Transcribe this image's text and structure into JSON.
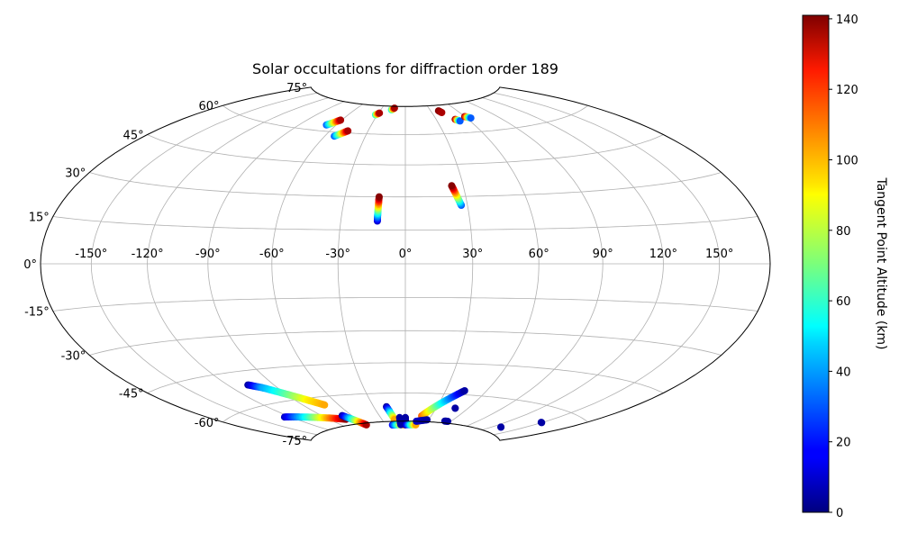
{
  "chart_data": {
    "type": "scatter",
    "projection": "hammer",
    "title": "Solar occultations for diffraction order 189",
    "grid": true,
    "lon_ticks": [
      "-150°",
      "-120°",
      "-90°",
      "-60°",
      "-30°",
      "0°",
      "30°",
      "60°",
      "90°",
      "120°",
      "150°"
    ],
    "lat_ticks": [
      "75°",
      "60°",
      "45°",
      "30°",
      "15°",
      "0°",
      "-15°",
      "-30°",
      "-45°",
      "-60°",
      "-75°"
    ],
    "colorbar": {
      "label": "Tangent Point Altitude (km)",
      "colormap": "jet",
      "range": [
        0,
        141
      ],
      "ticks": [
        "0",
        "20",
        "40",
        "60",
        "80",
        "100",
        "120",
        "140"
      ]
    },
    "tracks": [
      {
        "lon": [
          -68,
          -61
        ],
        "lat": [
          63,
          66
        ],
        "alt": [
          30,
          135
        ]
      },
      {
        "lon": [
          -53,
          -46
        ],
        "lat": [
          58,
          61
        ],
        "alt": [
          30,
          135
        ]
      },
      {
        "lon": [
          -32,
          -29
        ],
        "lat": [
          70,
          71
        ],
        "alt": [
          60,
          135
        ]
      },
      {
        "lon": [
          -17,
          -14
        ],
        "lat": [
          73,
          74
        ],
        "alt": [
          60,
          135
        ]
      },
      {
        "lon": [
          -13,
          -13
        ],
        "lat": [
          19,
          30
        ],
        "alt": [
          10,
          140
        ]
      },
      {
        "lon": [
          27,
          24
        ],
        "lat": [
          26,
          35
        ],
        "alt": [
          30,
          140
        ]
      },
      {
        "lon": [
          39,
          41
        ],
        "lat": [
          72,
          71
        ],
        "alt": [
          140,
          135
        ]
      },
      {
        "lon": [
          48,
          51
        ],
        "lat": [
          67,
          66
        ],
        "alt": [
          135,
          30
        ]
      },
      {
        "lon": [
          60,
          64
        ],
        "lat": [
          68,
          67
        ],
        "alt": [
          135,
          30
        ]
      },
      {
        "lon": [
          -107,
          -100
        ],
        "lat": [
          -51,
          -53
        ],
        "alt": [
          5,
          40
        ]
      },
      {
        "lon": [
          -100,
          -80
        ],
        "lat": [
          -53,
          -61
        ],
        "alt": [
          40,
          90
        ]
      },
      {
        "lon": [
          -80,
          -72
        ],
        "lat": [
          -61,
          -64
        ],
        "alt": [
          90,
          100
        ]
      },
      {
        "lon": [
          -125,
          -72
        ],
        "lat": [
          -66,
          -72
        ],
        "alt": [
          10,
          140
        ]
      },
      {
        "lon": [
          -70,
          -58
        ],
        "lat": [
          -70,
          -76
        ],
        "alt": [
          5,
          135
        ]
      },
      {
        "lon": [
          -18,
          -14
        ],
        "lat": [
          -67,
          -74
        ],
        "alt": [
          5,
          100
        ]
      },
      {
        "lon": [
          -20,
          0
        ],
        "lat": [
          -77,
          -77
        ],
        "alt": [
          20,
          120
        ]
      },
      {
        "lon": [
          -7,
          -7
        ],
        "lat": [
          -73,
          -77
        ],
        "alt": [
          5,
          5
        ]
      },
      {
        "lon": [
          0,
          0
        ],
        "lat": [
          -73,
          -77
        ],
        "alt": [
          5,
          5
        ]
      },
      {
        "lon": [
          0,
          16
        ],
        "lat": [
          -77,
          -77
        ],
        "alt": [
          5,
          100
        ]
      },
      {
        "lon": [
          19,
          44
        ],
        "lat": [
          -72,
          -58
        ],
        "alt": [
          110,
          5
        ]
      },
      {
        "lon": [
          15,
          28
        ],
        "lat": [
          -75,
          -74
        ],
        "alt": [
          10,
          5
        ]
      },
      {
        "lon": [
          48,
          48
        ],
        "lat": [
          -67,
          -67
        ],
        "alt": [
          5,
          5
        ]
      },
      {
        "lon": [
          52,
          56
        ],
        "lat": [
          -74,
          -74
        ],
        "alt": [
          5,
          5
        ]
      },
      {
        "lon": [
          129,
          129
        ],
        "lat": [
          -72,
          -72
        ],
        "alt": [
          5,
          5
        ]
      },
      {
        "lon": [
          149,
          150
        ],
        "lat": [
          -66,
          -66
        ],
        "alt": [
          5,
          5
        ]
      }
    ]
  }
}
